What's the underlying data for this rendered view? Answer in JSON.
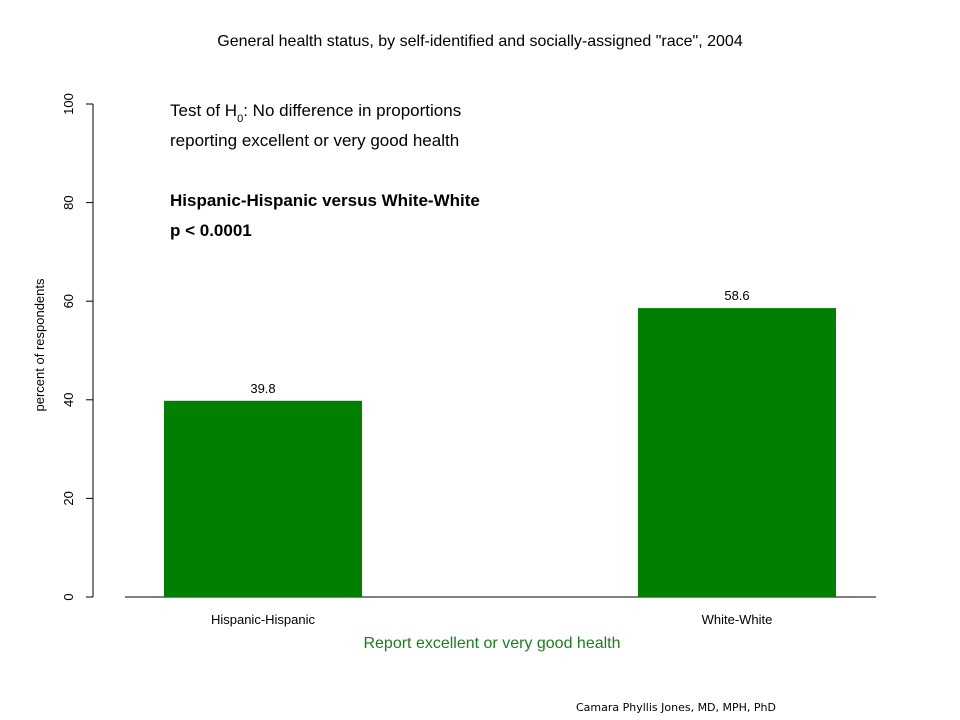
{
  "chart_data": {
    "type": "bar",
    "title": "General health status, by self-identified and socially-assigned \"race\", 2004",
    "xlabel": "Report excellent or very good health",
    "ylabel": "percent of respondents",
    "categories": [
      "Hispanic-Hispanic",
      "White-White"
    ],
    "values": [
      39.8,
      58.6
    ],
    "value_labels": [
      "39.8",
      "58.6"
    ],
    "ylim": [
      0,
      100
    ],
    "yticks": [
      0,
      20,
      40,
      60,
      80,
      100
    ],
    "ytick_labels": [
      "0",
      "20",
      "40",
      "60",
      "80",
      "100"
    ],
    "grid": false,
    "colors": {
      "bar": "#007f00",
      "xlabel": "#1a7f1a"
    },
    "annotation": {
      "line1_prefix": "Test of H",
      "line1_sub": "0",
      "line1_suffix": ":  No difference in proportions",
      "line2": "reporting excellent or very good health",
      "line3": "Hispanic-Hispanic versus White-White",
      "line4": "p < 0.0001"
    }
  },
  "footer": {
    "credit": "Camara Phyllis Jones, MD, MPH, PhD"
  }
}
